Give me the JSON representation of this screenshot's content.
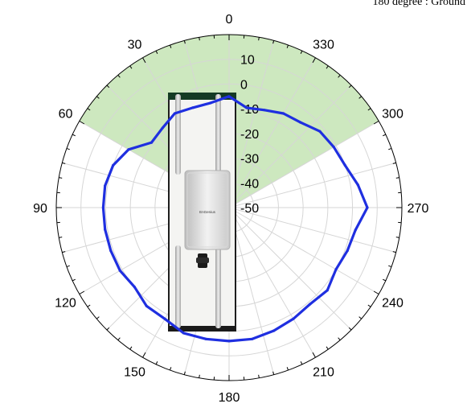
{
  "chart_data": {
    "type": "polar-line",
    "note": "180 degree : Ground",
    "theta_ticks": [
      0,
      30,
      60,
      90,
      120,
      150,
      180,
      210,
      240,
      270,
      300,
      330
    ],
    "theta_direction": "counterclockwise",
    "theta_zero_location": "top",
    "r_ticks": [
      10,
      0,
      -10,
      -20,
      -30,
      -40,
      -50
    ],
    "r_range": [
      -50,
      20
    ],
    "grid": true,
    "highlight_sector": {
      "from_deg": -60,
      "to_deg": 60,
      "color": "#c8e6b8"
    },
    "series": [
      {
        "color": "#1f2fe0",
        "theta": [
          0,
          10,
          20,
          30,
          40,
          50,
          60,
          70,
          80,
          90,
          100,
          110,
          120,
          130,
          140,
          150,
          160,
          170,
          180,
          190,
          200,
          210,
          220,
          230,
          240,
          250,
          260,
          270,
          280,
          290,
          300,
          310,
          320,
          330,
          340,
          350
        ],
        "r": [
          -5,
          -7,
          -7,
          -6,
          -8,
          -9,
          -3,
          0,
          1,
          1,
          1,
          1,
          1,
          0,
          2,
          2,
          4,
          4,
          4,
          4,
          3,
          2,
          1,
          2,
          0,
          1,
          2,
          6,
          3,
          0,
          -1,
          -2,
          -5,
          -6,
          -8,
          -9
        ]
      }
    ]
  },
  "photo": {
    "product_label": "EnGenius"
  }
}
